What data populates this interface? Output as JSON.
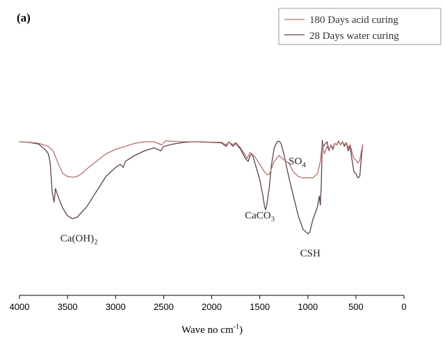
{
  "panel_label": "(a)",
  "chart_data": {
    "type": "line",
    "title": "",
    "xlabel": "Wave no cm",
    "xlabel_sup": "-1",
    "xlabel_suffix": ")",
    "ylabel": "",
    "xlim": [
      4000,
      0
    ],
    "x_reversed": true,
    "ylim": [
      0,
      100
    ],
    "x_ticks": [
      "4000",
      "3500",
      "3000",
      "2500",
      "2000",
      "1500",
      "1000",
      "500",
      "0"
    ],
    "x_tick_values": [
      4000,
      3500,
      3000,
      2500,
      2000,
      1500,
      1000,
      500,
      0
    ],
    "y_axis_visible": false,
    "grid": false,
    "legend_position": "top-right",
    "series": [
      {
        "name": "180 Days acid curing",
        "color": "#b5706c",
        "points": [
          [
            4000,
            88
          ],
          [
            3900,
            87.7
          ],
          [
            3800,
            87
          ],
          [
            3700,
            85
          ],
          [
            3650,
            82
          ],
          [
            3600,
            74
          ],
          [
            3550,
            67
          ],
          [
            3500,
            65
          ],
          [
            3450,
            64.5
          ],
          [
            3400,
            65
          ],
          [
            3350,
            67
          ],
          [
            3300,
            70
          ],
          [
            3200,
            75
          ],
          [
            3100,
            80
          ],
          [
            3000,
            83
          ],
          [
            2900,
            85
          ],
          [
            2800,
            87
          ],
          [
            2700,
            88
          ],
          [
            2600,
            88
          ],
          [
            2520,
            86
          ],
          [
            2480,
            88.6
          ],
          [
            2400,
            88.3
          ],
          [
            2300,
            88
          ],
          [
            2200,
            88
          ],
          [
            2100,
            88
          ],
          [
            2000,
            87.8
          ],
          [
            1900,
            87.7
          ],
          [
            1850,
            86
          ],
          [
            1820,
            88
          ],
          [
            1780,
            86
          ],
          [
            1750,
            87.5
          ],
          [
            1700,
            84
          ],
          [
            1660,
            80
          ],
          [
            1630,
            77
          ],
          [
            1600,
            81
          ],
          [
            1550,
            78
          ],
          [
            1500,
            73
          ],
          [
            1450,
            68
          ],
          [
            1420,
            66
          ],
          [
            1400,
            66.5
          ],
          [
            1350,
            75
          ],
          [
            1300,
            79
          ],
          [
            1250,
            76
          ],
          [
            1200,
            74
          ],
          [
            1150,
            68
          ],
          [
            1100,
            65
          ],
          [
            1050,
            64
          ],
          [
            1000,
            64.2
          ],
          [
            950,
            64
          ],
          [
            900,
            67
          ],
          [
            870,
            75
          ],
          [
            850,
            87
          ],
          [
            830,
            80
          ],
          [
            800,
            85
          ],
          [
            780,
            82
          ],
          [
            760,
            86
          ],
          [
            740,
            84
          ],
          [
            720,
            87
          ],
          [
            700,
            86
          ],
          [
            680,
            88
          ],
          [
            660,
            86
          ],
          [
            640,
            88
          ],
          [
            620,
            86
          ],
          [
            600,
            87.5
          ],
          [
            580,
            84
          ],
          [
            560,
            86
          ],
          [
            540,
            81
          ],
          [
            520,
            77
          ],
          [
            500,
            76
          ],
          [
            480,
            74
          ],
          [
            460,
            76
          ],
          [
            430,
            86
          ]
        ]
      },
      {
        "name": "28 Days water curing",
        "color": "#5c3f4c",
        "points": [
          [
            4000,
            88
          ],
          [
            3900,
            87.6
          ],
          [
            3800,
            86.5
          ],
          [
            3720,
            82
          ],
          [
            3700,
            80
          ],
          [
            3680,
            74
          ],
          [
            3660,
            55
          ],
          [
            3640,
            48
          ],
          [
            3625,
            57
          ],
          [
            3600,
            52
          ],
          [
            3550,
            44
          ],
          [
            3500,
            39
          ],
          [
            3450,
            37
          ],
          [
            3400,
            38
          ],
          [
            3300,
            45
          ],
          [
            3200,
            55
          ],
          [
            3100,
            65
          ],
          [
            3000,
            71
          ],
          [
            2950,
            73
          ],
          [
            2920,
            71
          ],
          [
            2900,
            75
          ],
          [
            2800,
            79
          ],
          [
            2700,
            82
          ],
          [
            2600,
            84
          ],
          [
            2530,
            82
          ],
          [
            2500,
            85
          ],
          [
            2400,
            86.5
          ],
          [
            2300,
            87.5
          ],
          [
            2200,
            88
          ],
          [
            2100,
            87.8
          ],
          [
            2000,
            87.6
          ],
          [
            1900,
            87.3
          ],
          [
            1850,
            85
          ],
          [
            1820,
            88
          ],
          [
            1780,
            85
          ],
          [
            1750,
            87
          ],
          [
            1700,
            83
          ],
          [
            1650,
            77
          ],
          [
            1620,
            75
          ],
          [
            1600,
            79
          ],
          [
            1580,
            80
          ],
          [
            1560,
            76
          ],
          [
            1500,
            63
          ],
          [
            1470,
            53
          ],
          [
            1450,
            45
          ],
          [
            1440,
            43
          ],
          [
            1430,
            45
          ],
          [
            1400,
            58
          ],
          [
            1380,
            72
          ],
          [
            1350,
            84
          ],
          [
            1320,
            88
          ],
          [
            1300,
            88.5
          ],
          [
            1280,
            87
          ],
          [
            1250,
            80
          ],
          [
            1200,
            65
          ],
          [
            1150,
            52
          ],
          [
            1100,
            39
          ],
          [
            1050,
            30
          ],
          [
            1000,
            27
          ],
          [
            980,
            28
          ],
          [
            950,
            36
          ],
          [
            900,
            45
          ],
          [
            880,
            52
          ],
          [
            870,
            46
          ],
          [
            860,
            60
          ],
          [
            850,
            89
          ],
          [
            840,
            85
          ],
          [
            800,
            88
          ],
          [
            780,
            82
          ],
          [
            760,
            86
          ],
          [
            740,
            83
          ],
          [
            720,
            87
          ],
          [
            700,
            86
          ],
          [
            680,
            88.5
          ],
          [
            660,
            86
          ],
          [
            640,
            88
          ],
          [
            620,
            85
          ],
          [
            600,
            87.5
          ],
          [
            580,
            82
          ],
          [
            560,
            85
          ],
          [
            540,
            76
          ],
          [
            520,
            68
          ],
          [
            500,
            67
          ],
          [
            480,
            64
          ],
          [
            460,
            65
          ],
          [
            440,
            80
          ],
          [
            430,
            86
          ]
        ]
      }
    ],
    "annotations": [
      {
        "base": "Ca(OH)",
        "sub": "2",
        "x": 3380,
        "y": 22
      },
      {
        "base": "CaCO",
        "sub": "3",
        "x": 1500,
        "y": 37
      },
      {
        "base": "SO",
        "sub": "4",
        "x": 1110,
        "y": 73
      },
      {
        "base": "CSH",
        "sub": "",
        "x": 975,
        "y": 12
      }
    ]
  }
}
